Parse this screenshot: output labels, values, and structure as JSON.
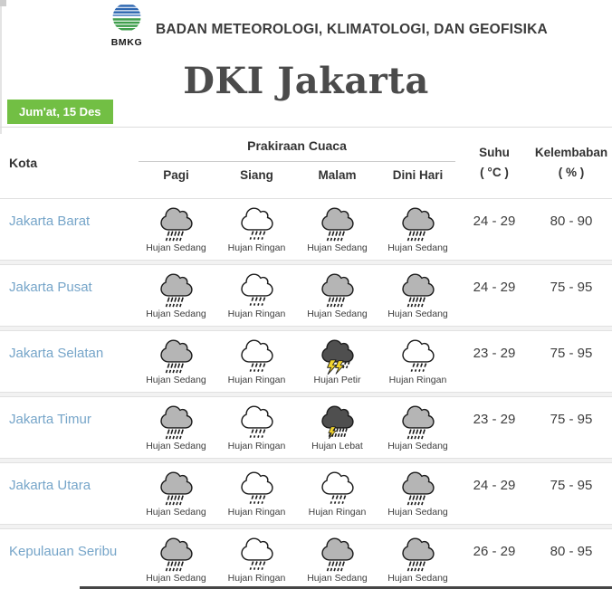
{
  "brand": {
    "agency_name": "BADAN METEOROLOGI, KLIMATOLOGI, DAN GEOFISIKA",
    "logo_text": "BMKG"
  },
  "page_title": "DKI Jakarta",
  "date_badge": "Jum'at, 15 Des",
  "colors": {
    "badge_green": "#72bf44",
    "city_link_blue": "#76a5c9",
    "lightning_yellow": "#f2d42c",
    "cloud_light": "#ffffff",
    "cloud_medium": "#b5b5b5",
    "cloud_dark": "#4f4f4f",
    "cloud_outline": "#1c1c1c",
    "bottom_bar": "#454545",
    "logo_blue": "#2e67b1",
    "logo_green": "#3f9e4c"
  },
  "table": {
    "header": {
      "kota": "Kota",
      "forecast_group": "Prakiraan Cuaca",
      "times": [
        "Pagi",
        "Siang",
        "Malam",
        "Dini Hari"
      ],
      "suhu_line1": "Suhu",
      "suhu_line2": "( °C )",
      "kelembaban_line1": "Kelembaban",
      "kelembaban_line2": "( % )"
    },
    "rows": [
      {
        "kota": "Jakarta Barat",
        "forecasts": [
          {
            "icon": "hujan-sedang-icon",
            "label": "Hujan Sedang"
          },
          {
            "icon": "hujan-ringan-icon",
            "label": "Hujan Ringan"
          },
          {
            "icon": "hujan-sedang-icon",
            "label": "Hujan Sedang"
          },
          {
            "icon": "hujan-sedang-icon",
            "label": "Hujan Sedang"
          }
        ],
        "suhu": "24 - 29",
        "kelembaban": "80 - 90"
      },
      {
        "kota": "Jakarta Pusat",
        "forecasts": [
          {
            "icon": "hujan-sedang-icon",
            "label": "Hujan Sedang"
          },
          {
            "icon": "hujan-ringan-icon",
            "label": "Hujan Ringan"
          },
          {
            "icon": "hujan-sedang-icon",
            "label": "Hujan Sedang"
          },
          {
            "icon": "hujan-sedang-icon",
            "label": "Hujan Sedang"
          }
        ],
        "suhu": "24 - 29",
        "kelembaban": "75 - 95"
      },
      {
        "kota": "Jakarta Selatan",
        "forecasts": [
          {
            "icon": "hujan-sedang-icon",
            "label": "Hujan Sedang"
          },
          {
            "icon": "hujan-ringan-icon",
            "label": "Hujan Ringan"
          },
          {
            "icon": "hujan-petir-icon",
            "label": "Hujan Petir"
          },
          {
            "icon": "hujan-ringan-icon",
            "label": "Hujan Ringan"
          }
        ],
        "suhu": "23 - 29",
        "kelembaban": "75 - 95"
      },
      {
        "kota": "Jakarta Timur",
        "forecasts": [
          {
            "icon": "hujan-sedang-icon",
            "label": "Hujan Sedang"
          },
          {
            "icon": "hujan-ringan-icon",
            "label": "Hujan Ringan"
          },
          {
            "icon": "hujan-lebat-icon",
            "label": "Hujan Lebat"
          },
          {
            "icon": "hujan-sedang-icon",
            "label": "Hujan Sedang"
          }
        ],
        "suhu": "23 - 29",
        "kelembaban": "75 - 95"
      },
      {
        "kota": "Jakarta Utara",
        "forecasts": [
          {
            "icon": "hujan-sedang-icon",
            "label": "Hujan Sedang"
          },
          {
            "icon": "hujan-ringan-icon",
            "label": "Hujan Ringan"
          },
          {
            "icon": "hujan-ringan-icon",
            "label": "Hujan Ringan"
          },
          {
            "icon": "hujan-sedang-icon",
            "label": "Hujan Sedang"
          }
        ],
        "suhu": "24 - 29",
        "kelembaban": "75 - 95"
      },
      {
        "kota": "Kepulauan Seribu",
        "forecasts": [
          {
            "icon": "hujan-sedang-icon",
            "label": "Hujan Sedang"
          },
          {
            "icon": "hujan-ringan-icon",
            "label": "Hujan Ringan"
          },
          {
            "icon": "hujan-sedang-icon",
            "label": "Hujan Sedang"
          },
          {
            "icon": "hujan-sedang-icon",
            "label": "Hujan Sedang"
          }
        ],
        "suhu": "26 - 29",
        "kelembaban": "80 - 95"
      }
    ]
  }
}
